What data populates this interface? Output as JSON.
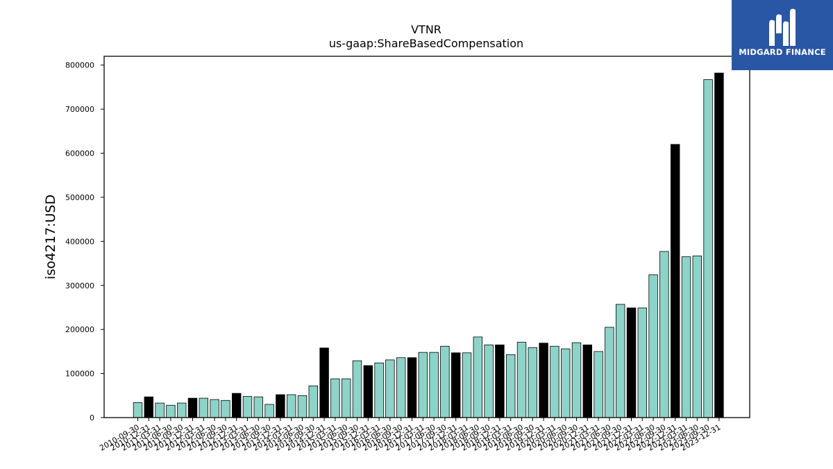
{
  "brand": {
    "name": "MIDGARD FINANCE",
    "color": "#2a56a6"
  },
  "chart_data": {
    "type": "bar",
    "title": "VTNR",
    "subtitle": "us-gaap:ShareBasedCompensation",
    "xlabel": "",
    "ylabel": "iso4217:USD",
    "ylim": [
      0,
      820000
    ],
    "yticks": [
      0,
      100000,
      200000,
      300000,
      400000,
      500000,
      600000,
      700000,
      800000
    ],
    "grid": false,
    "colors": {
      "quarterly": "#8dd3c7",
      "annual": "#000000"
    },
    "categories": [
      "2010-09-30",
      "2010-12-31",
      "2011-03-31",
      "2011-06-30",
      "2011-09-30",
      "2011-12-31",
      "2012-03-31",
      "2012-06-30",
      "2012-09-30",
      "2012-12-31",
      "2013-03-31",
      "2013-06-30",
      "2013-09-30",
      "2013-12-31",
      "2014-03-31",
      "2014-06-30",
      "2014-09-30",
      "2014-12-31",
      "2015-03-31",
      "2015-06-30",
      "2015-09-30",
      "2015-12-31",
      "2016-03-31",
      "2016-06-30",
      "2016-09-30",
      "2016-12-31",
      "2017-03-31",
      "2017-06-30",
      "2017-09-30",
      "2017-12-31",
      "2018-03-31",
      "2018-06-30",
      "2018-09-30",
      "2018-12-31",
      "2019-03-31",
      "2019-06-30",
      "2019-09-30",
      "2019-12-31",
      "2020-03-31",
      "2020-06-30",
      "2020-09-30",
      "2020-12-31",
      "2021-03-31",
      "2021-06-30",
      "2021-09-30",
      "2021-12-31",
      "2022-03-31",
      "2022-06-30",
      "2022-09-30",
      "2022-12-31",
      "2023-03-31",
      "2023-06-30",
      "2023-09-30",
      "2023-12-31"
    ],
    "values": [
      34000,
      47000,
      33000,
      28000,
      33000,
      44000,
      44000,
      41000,
      39000,
      55000,
      48000,
      47000,
      30000,
      52000,
      52000,
      50000,
      72000,
      158000,
      88000,
      88000,
      129000,
      118000,
      124000,
      131000,
      136000,
      136000,
      148000,
      148000,
      162000,
      147000,
      147000,
      183000,
      165000,
      165000,
      143000,
      171000,
      159000,
      169000,
      162000,
      156000,
      170000,
      165000,
      150000,
      205000,
      257000,
      249000,
      249000,
      324000,
      377000,
      620000,
      365000,
      367000,
      767000,
      782000
    ],
    "annual_flags": [
      false,
      true,
      false,
      false,
      false,
      true,
      false,
      false,
      false,
      true,
      false,
      false,
      false,
      true,
      false,
      false,
      false,
      true,
      false,
      false,
      false,
      true,
      false,
      false,
      false,
      true,
      false,
      false,
      false,
      true,
      false,
      false,
      false,
      true,
      false,
      false,
      false,
      true,
      false,
      false,
      false,
      true,
      false,
      false,
      false,
      true,
      false,
      false,
      false,
      true,
      false,
      false,
      false,
      true
    ]
  }
}
